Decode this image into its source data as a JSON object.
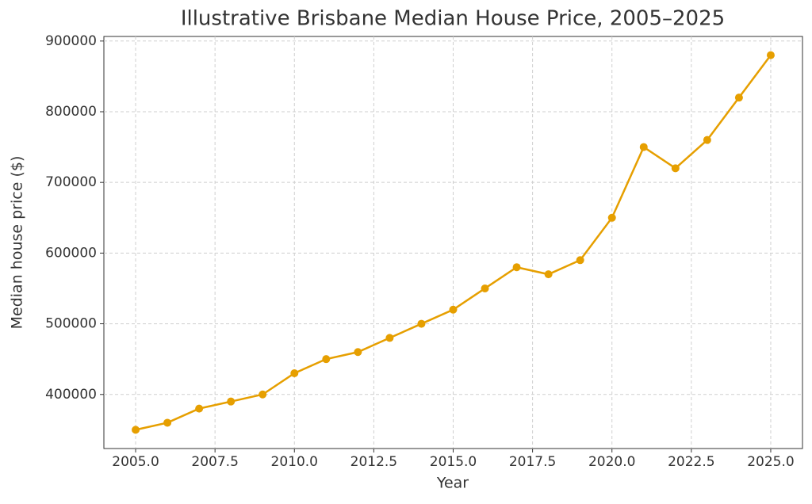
{
  "chart_data": {
    "type": "line",
    "title": "Illustrative Brisbane Median House Price, 2005–2025",
    "x_label": "Year",
    "y_label": "Median house price ($)",
    "x": [
      2005,
      2006,
      2007,
      2008,
      2009,
      2010,
      2011,
      2012,
      2013,
      2014,
      2015,
      2016,
      2017,
      2018,
      2019,
      2020,
      2021,
      2022,
      2023,
      2024,
      2025
    ],
    "values": [
      350000,
      360000,
      380000,
      390000,
      400000,
      430000,
      450000,
      460000,
      480000,
      500000,
      520000,
      550000,
      580000,
      570000,
      590000,
      650000,
      750000,
      720000,
      760000,
      820000,
      880000
    ],
    "color": "#e69f00",
    "xlim": [
      2004,
      2026
    ],
    "xticks": [
      {
        "value": 2005,
        "label": "2005.0"
      },
      {
        "value": 2007.5,
        "label": "2007.5"
      },
      {
        "value": 2010,
        "label": "2010.0"
      },
      {
        "value": 2012.5,
        "label": "2012.5"
      },
      {
        "value": 2015,
        "label": "2015.0"
      },
      {
        "value": 2017.5,
        "label": "2017.5"
      },
      {
        "value": 2020,
        "label": "2020.0"
      },
      {
        "value": 2022.5,
        "label": "2022.5"
      },
      {
        "value": 2025,
        "label": "2025.0"
      }
    ],
    "ylim": [
      323500,
      906500
    ],
    "yticks": [
      400000,
      500000,
      600000,
      700000,
      800000,
      900000
    ],
    "grid": true
  }
}
